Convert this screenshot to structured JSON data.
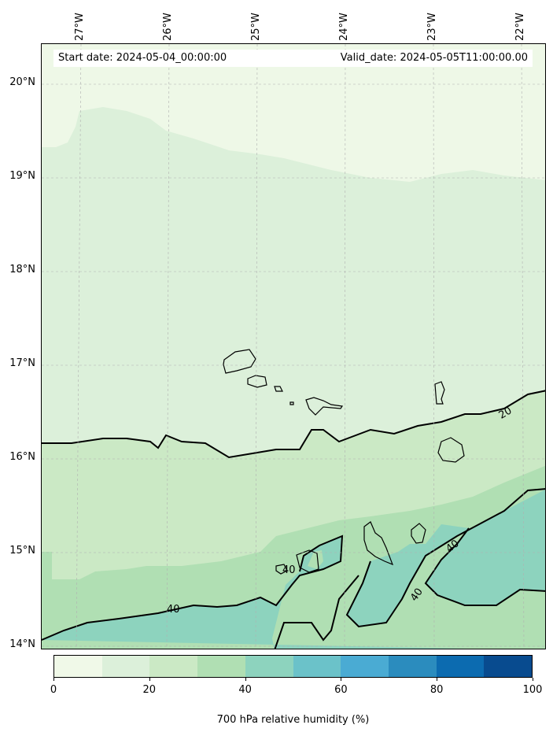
{
  "map": {
    "start_date": "Start date: 2024-05-04_00:00:00",
    "valid_date": "Valid_date: 2024-05-05T11:00:00.00",
    "lon_labels": [
      "27°W",
      "26°W",
      "25°W",
      "24°W",
      "23°W",
      "22°W"
    ],
    "lat_labels": [
      "20°N",
      "19°N",
      "18°N",
      "17°N",
      "16°N",
      "15°N",
      "14°N"
    ],
    "contour_labels": [
      "20",
      "40",
      "40",
      "40",
      "40"
    ],
    "fill_colors": {
      "band_0_10": "#eef8e7",
      "band_10_20": "#dcf0da",
      "band_20_30": "#cbe9c5",
      "band_30_40": "#b0dfb3",
      "band_40_50": "#8dd3be"
    }
  },
  "colorbar": {
    "label": "700 hPa relative humidity (%)",
    "ticks": [
      "0",
      "20",
      "40",
      "60",
      "80",
      "100"
    ],
    "colors": [
      "#f0f9e8",
      "#dcf0da",
      "#cbe9c5",
      "#b0dfb3",
      "#8dd3be",
      "#6bc2c9",
      "#4aabd3",
      "#2b8cbe",
      "#0c6bb0",
      "#084b8f"
    ]
  }
}
